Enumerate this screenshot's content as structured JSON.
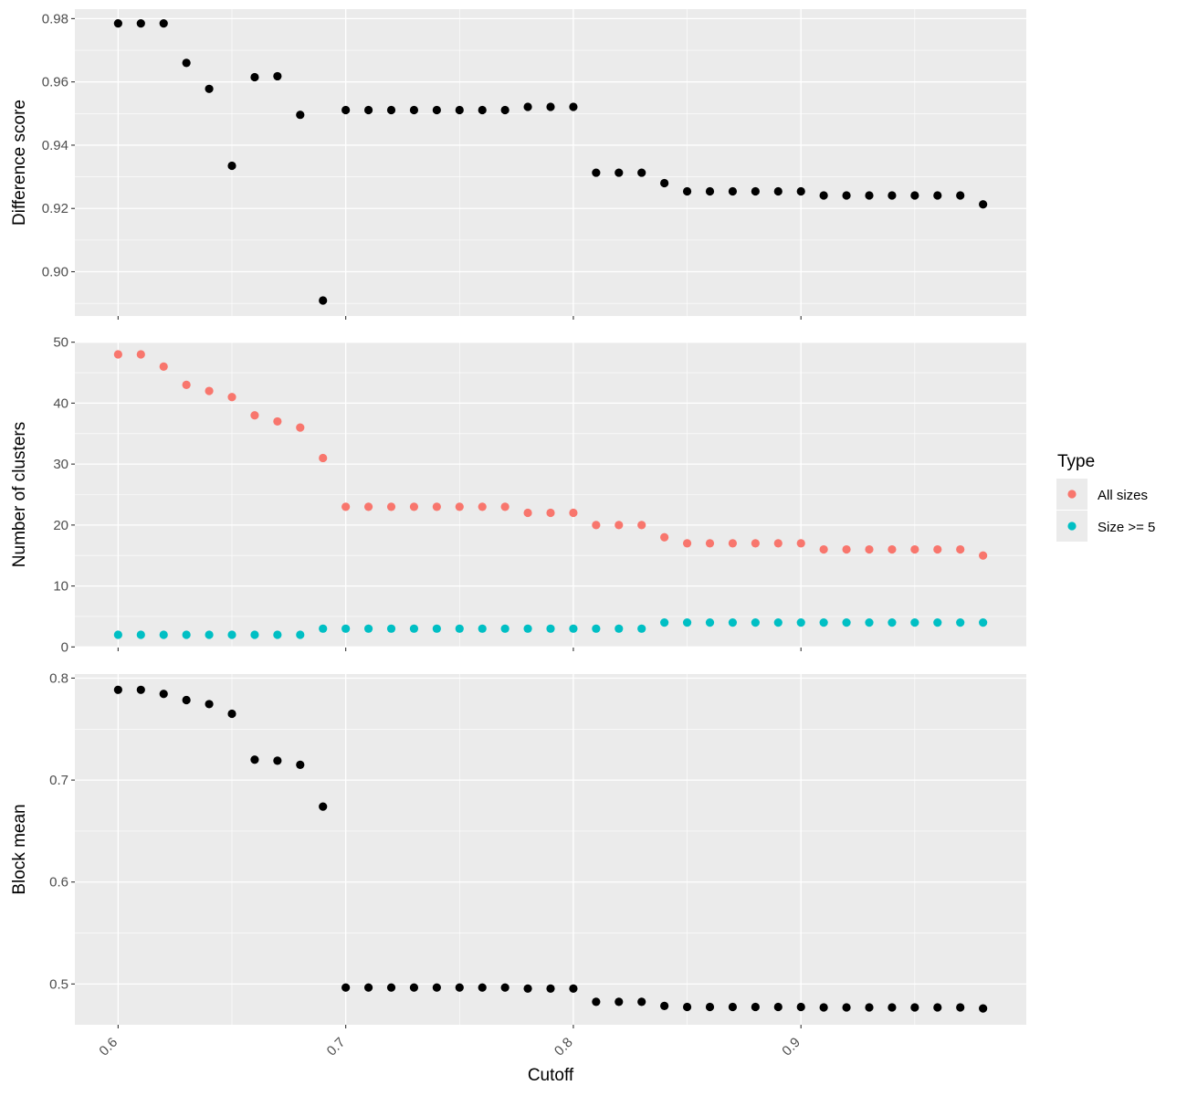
{
  "colors": {
    "panel_bg": "#EBEBEB",
    "grid": "#FFFFFF",
    "black_point": "#000000",
    "all_sizes": "#F8766D",
    "size_ge_5": "#00BFC4"
  },
  "chart_data": [
    {
      "type": "scatter",
      "xlabel": "",
      "ylabel": "Difference score",
      "xlim": [
        0.581,
        0.999
      ],
      "ylim": [
        0.886,
        0.983
      ],
      "x_ticks": [
        0.6,
        0.7,
        0.8,
        0.9
      ],
      "y_ticks": [
        0.9,
        0.92,
        0.94,
        0.96,
        0.98
      ],
      "y_tick_labels": [
        "0.90",
        "0.92",
        "0.94",
        "0.96",
        "0.98"
      ],
      "grid": true,
      "series": [
        {
          "x": [
            0.6,
            0.61,
            0.62,
            0.63,
            0.64,
            0.65,
            0.66,
            0.67,
            0.68,
            0.69,
            0.7,
            0.71,
            0.72,
            0.73,
            0.74,
            0.75,
            0.76,
            0.77,
            0.78,
            0.79,
            0.8,
            0.81,
            0.82,
            0.83,
            0.84,
            0.85,
            0.86,
            0.87,
            0.88,
            0.89,
            0.9,
            0.91,
            0.92,
            0.93,
            0.94,
            0.95,
            0.96,
            0.97,
            0.98
          ],
          "values": [
            0.9785,
            0.9785,
            0.9785,
            0.966,
            0.9578,
            0.9335,
            0.9615,
            0.9618,
            0.9496,
            0.8909,
            0.9511,
            0.9511,
            0.9511,
            0.9511,
            0.9511,
            0.9511,
            0.9511,
            0.9511,
            0.9521,
            0.9521,
            0.9521,
            0.9313,
            0.9313,
            0.9313,
            0.928,
            0.9254,
            0.9254,
            0.9254,
            0.9254,
            0.9254,
            0.9254,
            0.9241,
            0.9241,
            0.9241,
            0.9241,
            0.9241,
            0.9241,
            0.9241,
            0.9213
          ]
        }
      ]
    },
    {
      "type": "scatter",
      "xlabel": "",
      "ylabel": "Number of clusters",
      "xlim": [
        0.581,
        0.999
      ],
      "ylim": [
        -0.1,
        50.1
      ],
      "x_ticks": [
        0.6,
        0.7,
        0.8,
        0.9
      ],
      "y_ticks": [
        0,
        10,
        20,
        30,
        40,
        50
      ],
      "y_tick_labels": [
        "0",
        "10",
        "20",
        "30",
        "40",
        "50"
      ],
      "grid": true,
      "legend": {
        "title": "Type",
        "placement": "right"
      },
      "series": [
        {
          "name": "All sizes",
          "x": [
            0.6,
            0.61,
            0.62,
            0.63,
            0.64,
            0.65,
            0.66,
            0.67,
            0.68,
            0.69,
            0.7,
            0.71,
            0.72,
            0.73,
            0.74,
            0.75,
            0.76,
            0.77,
            0.78,
            0.79,
            0.8,
            0.81,
            0.82,
            0.83,
            0.84,
            0.85,
            0.86,
            0.87,
            0.88,
            0.89,
            0.9,
            0.91,
            0.92,
            0.93,
            0.94,
            0.95,
            0.96,
            0.97,
            0.98
          ],
          "values": [
            48,
            48,
            46,
            43,
            42,
            41,
            38,
            37,
            36,
            31,
            23,
            23,
            23,
            23,
            23,
            23,
            23,
            23,
            22,
            22,
            22,
            20,
            20,
            20,
            18,
            17,
            17,
            17,
            17,
            17,
            17,
            16,
            16,
            16,
            16,
            16,
            16,
            16,
            15
          ]
        },
        {
          "name": "Size >= 5",
          "x": [
            0.6,
            0.61,
            0.62,
            0.63,
            0.64,
            0.65,
            0.66,
            0.67,
            0.68,
            0.69,
            0.7,
            0.71,
            0.72,
            0.73,
            0.74,
            0.75,
            0.76,
            0.77,
            0.78,
            0.79,
            0.8,
            0.81,
            0.82,
            0.83,
            0.84,
            0.85,
            0.86,
            0.87,
            0.88,
            0.89,
            0.9,
            0.91,
            0.92,
            0.93,
            0.94,
            0.95,
            0.96,
            0.97,
            0.98
          ],
          "values": [
            2,
            2,
            2,
            2,
            2,
            2,
            2,
            2,
            2,
            3,
            3,
            3,
            3,
            3,
            3,
            3,
            3,
            3,
            3,
            3,
            3,
            3,
            3,
            3,
            4,
            4,
            4,
            4,
            4,
            4,
            4,
            4,
            4,
            4,
            4,
            4,
            4,
            4,
            4
          ]
        }
      ]
    },
    {
      "type": "scatter",
      "xlabel": "Cutoff",
      "ylabel": "Block mean",
      "xlim": [
        0.581,
        0.999
      ],
      "ylim": [
        0.46,
        0.804
      ],
      "x_ticks": [
        0.6,
        0.7,
        0.8,
        0.9
      ],
      "x_tick_labels": [
        "0.6",
        "0.7",
        "0.8",
        "0.9"
      ],
      "y_ticks": [
        0.5,
        0.6,
        0.7,
        0.8
      ],
      "y_tick_labels": [
        "0.5",
        "0.6",
        "0.7",
        "0.8"
      ],
      "grid": true,
      "series": [
        {
          "x": [
            0.6,
            0.61,
            0.62,
            0.63,
            0.64,
            0.65,
            0.66,
            0.67,
            0.68,
            0.69,
            0.7,
            0.71,
            0.72,
            0.73,
            0.74,
            0.75,
            0.76,
            0.77,
            0.78,
            0.79,
            0.8,
            0.81,
            0.82,
            0.83,
            0.84,
            0.85,
            0.86,
            0.87,
            0.88,
            0.89,
            0.9,
            0.91,
            0.92,
            0.93,
            0.94,
            0.95,
            0.96,
            0.97,
            0.98
          ],
          "values": [
            0.7885,
            0.7885,
            0.7845,
            0.7785,
            0.7745,
            0.765,
            0.72,
            0.719,
            0.715,
            0.674,
            0.4965,
            0.4965,
            0.4965,
            0.4965,
            0.4965,
            0.4965,
            0.4965,
            0.4965,
            0.4955,
            0.4955,
            0.4955,
            0.4825,
            0.4825,
            0.4825,
            0.4785,
            0.4775,
            0.4775,
            0.4775,
            0.4775,
            0.4775,
            0.4775,
            0.477,
            0.477,
            0.477,
            0.477,
            0.477,
            0.477,
            0.477,
            0.476
          ]
        }
      ]
    }
  ]
}
